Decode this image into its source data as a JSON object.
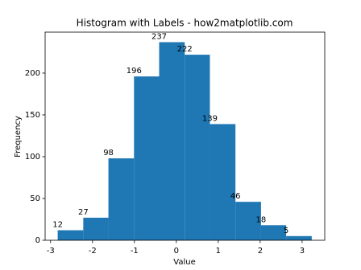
{
  "chart_data": {
    "type": "histogram",
    "title": "Histogram with Labels - how2matplotlib.com",
    "x_label": "Value",
    "y_label": "Frequency",
    "bins": [
      -2.83,
      -2.22,
      -1.62,
      -1.01,
      -0.41,
      0.2,
      0.8,
      1.41,
      2.02,
      2.62,
      3.23
    ],
    "counts": [
      12,
      27,
      98,
      196,
      237,
      222,
      139,
      46,
      18,
      5
    ],
    "color": "#1f77b4",
    "xlim": [
      -3.13,
      3.54
    ],
    "xticks": [
      -3,
      -2,
      -1,
      0,
      1,
      2,
      3
    ],
    "ylim": [
      0,
      249
    ],
    "yticks": [
      0,
      50,
      100,
      150,
      200
    ]
  }
}
